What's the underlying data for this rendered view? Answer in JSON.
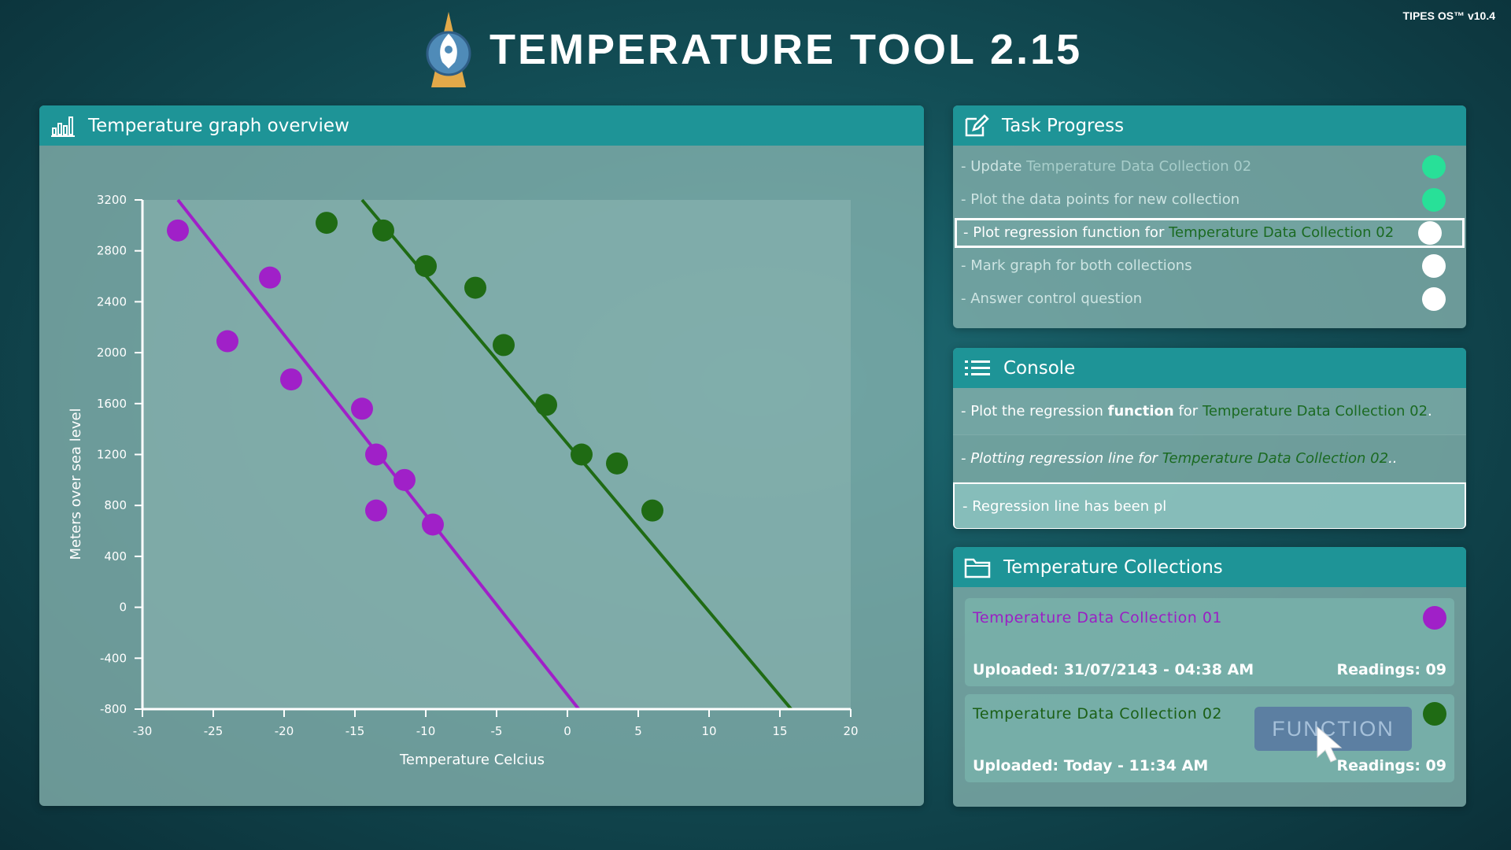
{
  "app": {
    "title": "TEMPERATURE TOOL 2.15",
    "os_badge": "TIPES OS™ v10.4",
    "logo_icon": "rocket-globe-logo-icon"
  },
  "graph_panel": {
    "title": "Temperature graph overview",
    "icon": "bar-chart-icon"
  },
  "chart_data": {
    "type": "scatter",
    "title": "Temperature graph overview",
    "xlabel": "Temperature Celcius",
    "ylabel": "Meters over sea level",
    "xlim": [
      -30,
      20
    ],
    "ylim": [
      -800,
      3200
    ],
    "xticks": [
      -30,
      -25,
      -20,
      -15,
      -10,
      -5,
      0,
      5,
      10,
      15,
      20
    ],
    "yticks": [
      -800,
      -400,
      0,
      400,
      800,
      1200,
      1600,
      2000,
      2400,
      2800,
      3200
    ],
    "series": [
      {
        "name": "Temperature Data Collection 01",
        "color": "#a020c8",
        "points": [
          {
            "x": -27.5,
            "y": 2960
          },
          {
            "x": -21,
            "y": 2590
          },
          {
            "x": -24,
            "y": 2090
          },
          {
            "x": -19.5,
            "y": 1790
          },
          {
            "x": -14.5,
            "y": 1560
          },
          {
            "x": -13.5,
            "y": 1200
          },
          {
            "x": -11.5,
            "y": 1000
          },
          {
            "x": -13.5,
            "y": 760
          },
          {
            "x": -9.5,
            "y": 650
          }
        ],
        "regression": {
          "x1": -27.5,
          "y1": 3200,
          "x2": 0.8,
          "y2": -800
        }
      },
      {
        "name": "Temperature Data Collection 02",
        "color": "#1f6b14",
        "points": [
          {
            "x": -17,
            "y": 3020
          },
          {
            "x": -13,
            "y": 2960
          },
          {
            "x": -10,
            "y": 2680
          },
          {
            "x": -6.5,
            "y": 2510
          },
          {
            "x": -4.5,
            "y": 2060
          },
          {
            "x": -1.5,
            "y": 1590
          },
          {
            "x": 1,
            "y": 1200
          },
          {
            "x": 3.5,
            "y": 1130
          },
          {
            "x": 6,
            "y": 760
          }
        ],
        "regression": {
          "x1": -14.5,
          "y1": 3200,
          "x2": 15.8,
          "y2": -800
        }
      }
    ]
  },
  "task_panel": {
    "title": "Task Progress",
    "icon": "edit-icon",
    "tasks": [
      {
        "pre": "- Update ",
        "highlight": "Temperature Data Collection 02",
        "post": "",
        "status": "done"
      },
      {
        "pre": "- Plot the data points for new collection",
        "highlight": "",
        "post": "",
        "status": "done"
      },
      {
        "pre": "- Plot regression function for ",
        "highlight": "Temperature Data Collection 02",
        "post": "",
        "status": "active"
      },
      {
        "pre": "- Mark graph for both collections",
        "highlight": "",
        "post": "",
        "status": "pending"
      },
      {
        "pre": "- Answer control question",
        "highlight": "",
        "post": "",
        "status": "pending"
      }
    ]
  },
  "console_panel": {
    "title": "Console",
    "icon": "list-icon",
    "line1": {
      "pre": "- Plot the regression ",
      "bold": "function",
      "mid": " for ",
      "highlight": "Temperature Data Collection 02",
      "post": "."
    },
    "line2": {
      "pre": "- Plotting regression line for ",
      "highlight": "Temperature Data Collection 02",
      "post": ".."
    },
    "line3": {
      "text": "- Regression line has been pl"
    }
  },
  "collections_panel": {
    "title": "Temperature Collections",
    "icon": "folder-icon",
    "items": [
      {
        "name": "Temperature Data Collection 01",
        "color": "#a020c8",
        "uploaded": "Uploaded: 31/07/2143 - 04:38 AM",
        "readings": "Readings: 09"
      },
      {
        "name": "Temperature Data Collection 02",
        "color": "#1f6b14",
        "uploaded": "Uploaded: Today - 11:34 AM",
        "readings": "Readings: 09"
      }
    ],
    "function_button": "FUNCTION"
  }
}
